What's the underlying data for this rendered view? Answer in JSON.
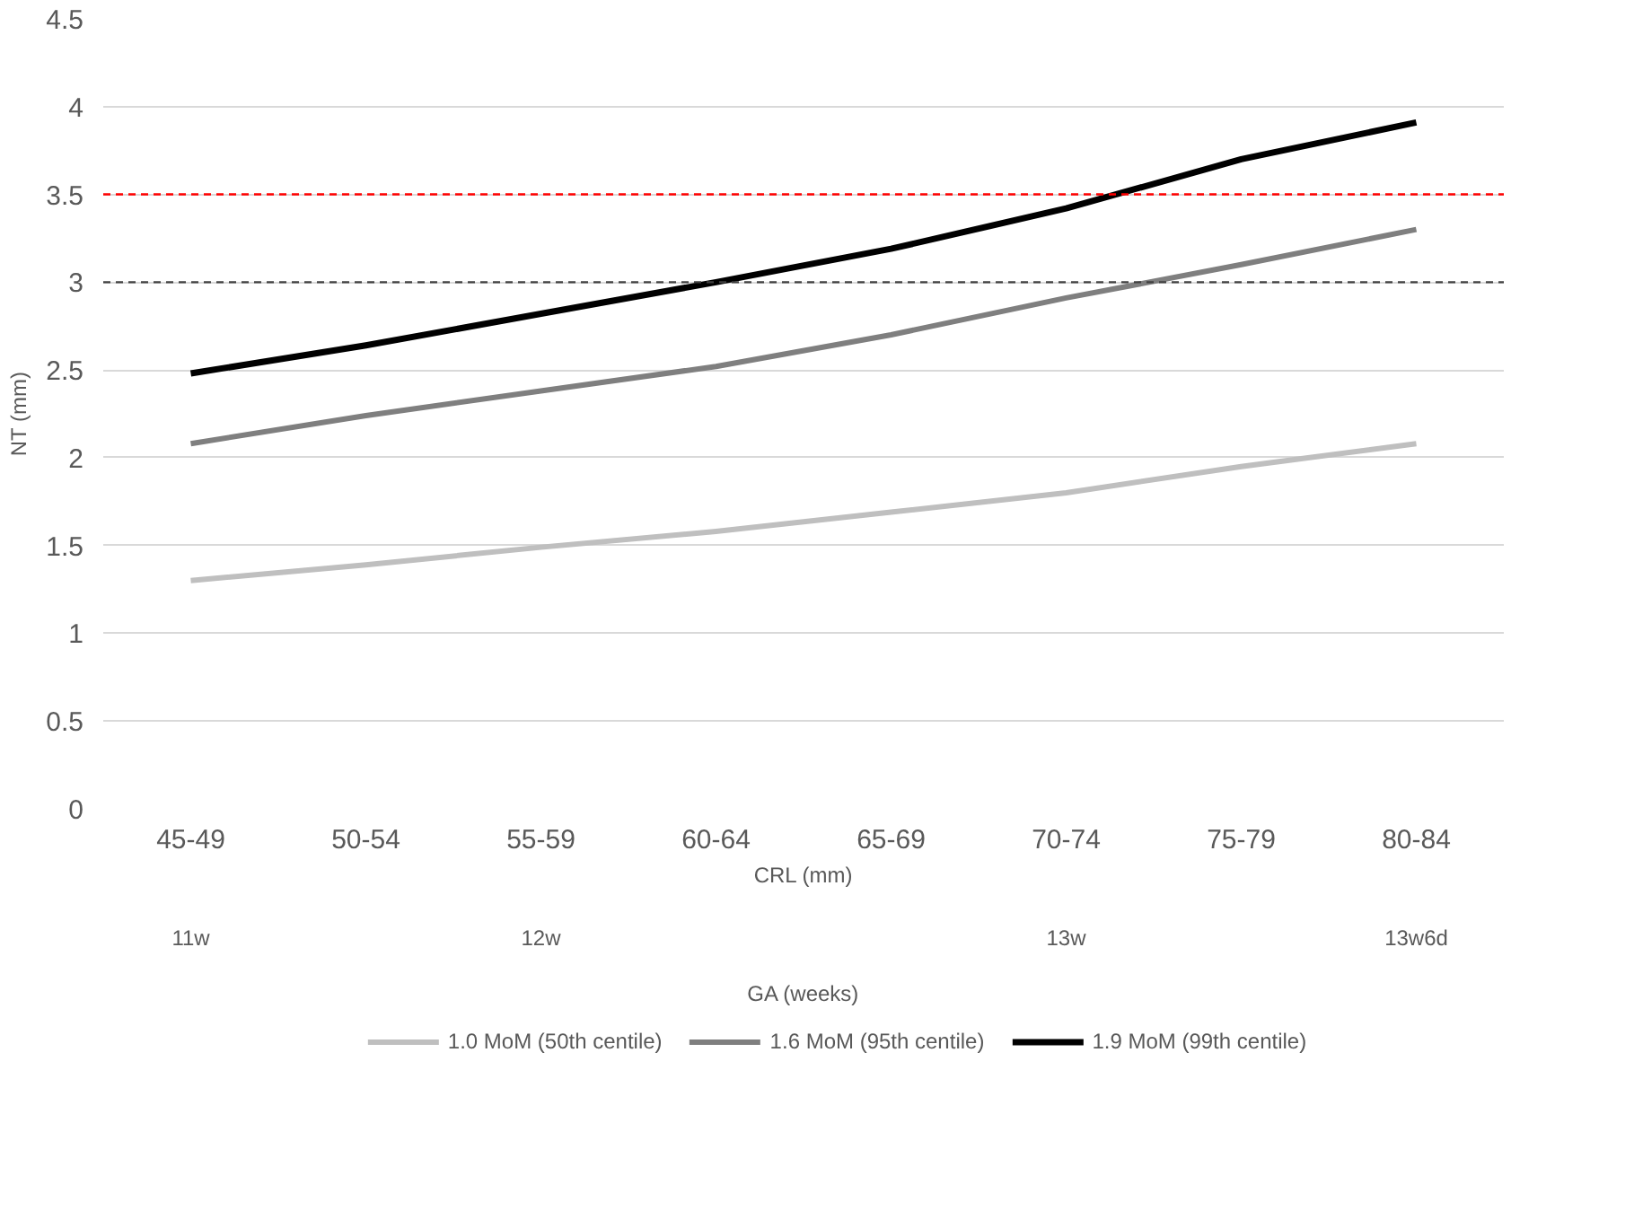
{
  "chart_data": {
    "type": "line",
    "xlabel": "CRL (mm)",
    "ylabel": "NT (mm)",
    "categories": [
      "45-49",
      "50-54",
      "55-59",
      "60-64",
      "65-69",
      "70-74",
      "75-79",
      "80-84"
    ],
    "series": [
      {
        "name": "1.0 MoM (50th centile)",
        "color": "#bfbfbf",
        "values": [
          1.3,
          1.39,
          1.49,
          1.58,
          1.69,
          1.8,
          1.95,
          2.08
        ]
      },
      {
        "name": "1.6 MoM (95th centile)",
        "color": "#7f7f7f",
        "values": [
          2.08,
          2.24,
          2.38,
          2.52,
          2.7,
          2.91,
          3.1,
          3.3
        ]
      },
      {
        "name": "1.9 MoM (99th centile)",
        "color": "#000000",
        "values": [
          2.48,
          2.64,
          2.82,
          3.0,
          3.19,
          3.42,
          3.7,
          3.91
        ]
      }
    ],
    "ylim": [
      0,
      4.5
    ],
    "yticks": [
      0,
      0.5,
      1,
      1.5,
      2,
      2.5,
      3,
      3.5,
      4,
      4.5
    ],
    "ref_lines": [
      {
        "axis": "y",
        "value": 3.5,
        "color": "#ff0000",
        "line_style": "dashed"
      },
      {
        "axis": "y",
        "value": 3,
        "color": "#404040",
        "line_style": "dashed"
      }
    ],
    "annotations": [
      "11w",
      "12w",
      "13w",
      "13w6d",
      "GA (weeks)"
    ],
    "grid": "y",
    "legend": "bottom",
    "marker": "none",
    "line_style": "solid"
  }
}
